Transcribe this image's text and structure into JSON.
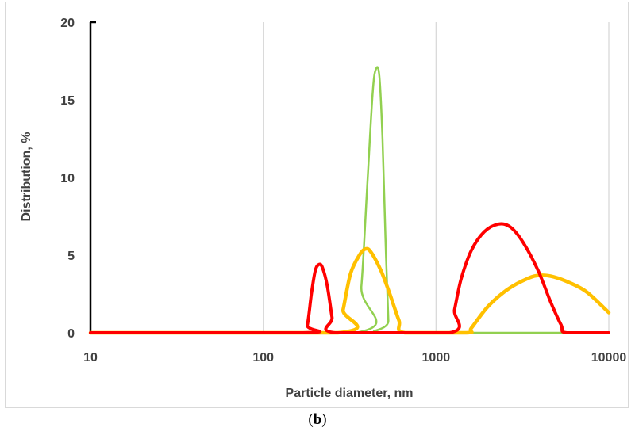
{
  "chart_data": {
    "type": "line",
    "xlabel": "Particle diameter, nm",
    "ylabel": "Distribution, %",
    "x_scale": "log",
    "xlim": [
      10,
      10000
    ],
    "ylim": [
      0,
      20
    ],
    "x_ticks": [
      "10",
      "100",
      "1000",
      "10000"
    ],
    "y_ticks": [
      "0",
      "5",
      "10",
      "15",
      "20"
    ],
    "grid": "vertical",
    "legend": "none",
    "series": [
      {
        "color": "#92d050",
        "points": [
          [
            10,
            0
          ],
          [
            340,
            0
          ],
          [
            370,
            3.0
          ],
          [
            400,
            9.5
          ],
          [
            430,
            15.5
          ],
          [
            450,
            17.0
          ],
          [
            470,
            16.5
          ],
          [
            490,
            12.5
          ],
          [
            510,
            6.0
          ],
          [
            530,
            0.8
          ],
          [
            545,
            0
          ],
          [
            10000,
            0
          ]
        ]
      },
      {
        "color": "#ffc000",
        "points": [
          [
            10,
            0
          ],
          [
            270,
            0
          ],
          [
            290,
            1.5
          ],
          [
            320,
            3.8
          ],
          [
            360,
            5.0
          ],
          [
            390,
            5.4
          ],
          [
            420,
            5.2
          ],
          [
            480,
            4.0
          ],
          [
            540,
            2.5
          ],
          [
            610,
            0.8
          ],
          [
            660,
            0
          ],
          [
            1500,
            0
          ],
          [
            1600,
            0.3
          ],
          [
            2000,
            1.7
          ],
          [
            2600,
            2.8
          ],
          [
            3400,
            3.5
          ],
          [
            4000,
            3.7
          ],
          [
            4800,
            3.6
          ],
          [
            6000,
            3.2
          ],
          [
            7500,
            2.6
          ],
          [
            10000,
            1.3
          ]
        ]
      },
      {
        "color": "#ff0000",
        "points": [
          [
            10,
            0
          ],
          [
            170,
            0
          ],
          [
            180,
            0.5
          ],
          [
            190,
            2.5
          ],
          [
            200,
            4.0
          ],
          [
            210,
            4.4
          ],
          [
            220,
            4.2
          ],
          [
            235,
            3.0
          ],
          [
            250,
            1.0
          ],
          [
            260,
            0
          ],
          [
            1200,
            0
          ],
          [
            1280,
            1.5
          ],
          [
            1400,
            3.5
          ],
          [
            1600,
            5.3
          ],
          [
            1900,
            6.5
          ],
          [
            2300,
            7.0
          ],
          [
            2700,
            6.8
          ],
          [
            3200,
            5.8
          ],
          [
            3900,
            4.0
          ],
          [
            4600,
            2.0
          ],
          [
            5300,
            0.5
          ],
          [
            5700,
            0
          ],
          [
            10000,
            0
          ]
        ]
      }
    ]
  },
  "panel_label": {
    "open": "(",
    "letter": "b",
    "close": ")"
  }
}
